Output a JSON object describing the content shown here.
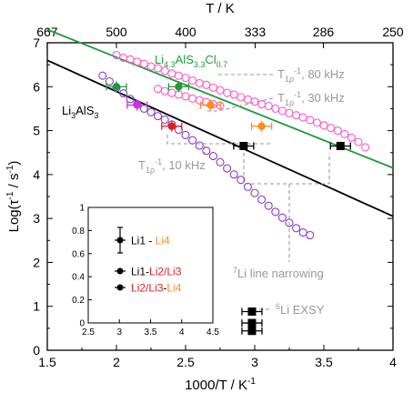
{
  "chart_data": {
    "type": "scatter",
    "title": "",
    "xlabel": "1000/T / K",
    "xlabel_sup": "-1",
    "ylabel": "Log(τ",
    "ylabel_sup": "-1",
    "ylabel_end": " / s",
    "ylabel_end_sup": "-1",
    "ylabel_close": ")",
    "top_axis_label": "T / K",
    "xlim": [
      1.5,
      4
    ],
    "ylim": [
      0,
      7
    ],
    "x_ticks": [
      "1.5",
      "2",
      "2.5",
      "3",
      "3.5",
      "4"
    ],
    "y_ticks": [
      "0",
      "1",
      "2",
      "3",
      "4",
      "5",
      "6",
      "7"
    ],
    "top_ticks": [
      "667",
      "500",
      "400",
      "333",
      "286",
      "250"
    ],
    "grid": false,
    "fit_lines": [
      {
        "label": "Li4.3AlS3.3Cl0.7",
        "color": "#1f9a3a",
        "x": [
          1.5,
          4
        ],
        "y": [
          7.3,
          4.15
        ]
      },
      {
        "label": "Li3AlS3",
        "color": "#000000",
        "x": [
          1.5,
          4
        ],
        "y": [
          6.6,
          3.05
        ]
      }
    ],
    "labels": {
      "li43_main": "Li",
      "li43_s1": "4.3",
      "li43_mid": "AlS",
      "li43_s2": "3.3",
      "li43_cl": "Cl",
      "li43_s3": "0.7",
      "li3_main": "Li",
      "li3_s1": "3",
      "li3_mid": "AlS",
      "li3_s2": "3",
      "t80_pre": "T",
      "t80_sub": "1ρ",
      "t80_sup": "-1",
      "t80_post": ", 80 kHz",
      "t30_pre": "T",
      "t30_sub": "1ρ",
      "t30_sup": "-1",
      "t30_post": ", 30 kHz",
      "t10_pre": "T",
      "t10_sub": "1ρ",
      "t10_sup": "-1",
      "t10_post": ", 10 kHz",
      "narrow_sup": "7",
      "narrow_text": "Li line narrowing",
      "exsy_sup": "6",
      "exsy_text": "Li EXSY"
    },
    "series": [
      {
        "name": "T1rho 80 kHz (Li4.3AlS3.3Cl0.7)",
        "marker": "open-circle",
        "color": "#ff55cc",
        "x": [
          2.0,
          2.05,
          2.1,
          2.15,
          2.2,
          2.25,
          2.3,
          2.35,
          2.4,
          2.45,
          2.5,
          2.55,
          2.6,
          2.65,
          2.7,
          2.75,
          2.8,
          2.85,
          2.9,
          2.95,
          3.0,
          3.05,
          3.1,
          3.15,
          3.2,
          3.25,
          3.3,
          3.35,
          3.4,
          3.45,
          3.5,
          3.55,
          3.6,
          3.65,
          3.7,
          3.75,
          3.8
        ],
        "y": [
          6.72,
          6.66,
          6.62,
          6.57,
          6.52,
          6.46,
          6.42,
          6.36,
          6.3,
          6.25,
          6.2,
          6.14,
          6.08,
          6.04,
          5.98,
          5.92,
          5.86,
          5.82,
          5.76,
          5.71,
          5.66,
          5.6,
          5.56,
          5.5,
          5.45,
          5.4,
          5.35,
          5.3,
          5.24,
          5.18,
          5.12,
          5.06,
          5.0,
          4.92,
          4.84,
          4.74,
          4.62
        ]
      },
      {
        "name": "T1rho 30 kHz (Li4.3AlS3.3Cl0.7)",
        "marker": "open-circle",
        "color": "#ff55cc",
        "x": [
          2.3,
          2.35,
          2.4,
          2.45,
          2.5,
          2.55,
          2.6,
          2.65,
          2.7,
          2.75
        ],
        "y": [
          5.95,
          5.9,
          5.86,
          5.82,
          5.78,
          5.73,
          5.69,
          5.65,
          5.6,
          5.57
        ]
      },
      {
        "name": "T1rho 10 kHz (Li3AlS3)",
        "marker": "open-circle",
        "color": "#8a3dc2",
        "x": [
          1.9,
          1.95,
          2.0,
          2.05,
          2.1,
          2.15,
          2.2,
          2.25,
          2.3,
          2.35,
          2.4,
          2.45,
          2.5,
          2.55,
          2.6,
          2.65,
          2.7,
          2.75,
          2.8,
          2.85,
          2.9,
          2.95,
          3.0,
          3.05,
          3.1,
          3.15,
          3.2,
          3.25,
          3.3,
          3.35,
          3.4
        ],
        "y": [
          6.25,
          6.12,
          5.98,
          5.85,
          5.72,
          5.6,
          5.5,
          5.42,
          5.33,
          5.25,
          5.14,
          5.02,
          4.9,
          4.78,
          4.66,
          4.54,
          4.42,
          4.28,
          4.14,
          4.0,
          3.88,
          3.72,
          3.58,
          3.43,
          3.29,
          3.15,
          3.02,
          2.9,
          2.78,
          2.68,
          2.62
        ]
      },
      {
        "name": "Li1 - Li4 (green)",
        "marker": "filled-circle",
        "color": "#1f9a3a",
        "x": [
          2.0,
          2.45
        ],
        "y": [
          6.0,
          6.0
        ]
      },
      {
        "name": "Li1 - Li4 (orange)",
        "marker": "filled-circle",
        "color": "#ff8c1a",
        "x": [
          2.68,
          3.05
        ],
        "y": [
          5.58,
          5.1
        ]
      },
      {
        "name": "Li2/Li3 - Li4 (magenta/purple)",
        "marker": "filled-circle",
        "color": "#cc33dd",
        "x": [
          2.15
        ],
        "y": [
          5.58
        ]
      },
      {
        "name": "Li1 - Li2/Li3 (red)",
        "marker": "filled-circle",
        "color": "#e0201b",
        "x": [
          2.4
        ],
        "y": [
          5.1
        ]
      },
      {
        "name": "7Li line narrowing",
        "marker": "filled-square",
        "color": "#000000",
        "x": [
          2.92,
          3.62
        ],
        "y": [
          4.65,
          4.65
        ]
      },
      {
        "name": "6Li EXSY",
        "marker": "filled-square",
        "color": "#000000",
        "x": [
          2.98,
          2.98,
          2.98
        ],
        "y": [
          0.88,
          0.62,
          0.44
        ]
      }
    ],
    "inset": {
      "xlim": [
        2.5,
        4.5
      ],
      "ylim": [
        0,
        1
      ],
      "x_ticks": [
        "2.5",
        "3",
        "3.5",
        "4",
        "4.5"
      ],
      "y_ticks": [
        "0",
        "0.2",
        "0.4",
        "0.6",
        "0.8",
        "1"
      ],
      "legend": [
        {
          "parts": [
            {
              "text": "Li1",
              "color": "#000000"
            },
            {
              "text": " - ",
              "color": "#000000"
            },
            {
              "text": "Li4",
              "color": "#ff8c1a"
            }
          ]
        },
        {
          "parts": [
            {
              "text": "Li1",
              "color": "#000000"
            },
            {
              "text": "-",
              "color": "#000000"
            },
            {
              "text": "Li2/Li3",
              "color": "#e0201b"
            }
          ]
        },
        {
          "parts": [
            {
              "text": "Li2/Li3",
              "color": "#e0201b"
            },
            {
              "text": "-",
              "color": "#000000"
            },
            {
              "text": "Li4",
              "color": "#ff8c1a"
            }
          ]
        }
      ]
    }
  }
}
